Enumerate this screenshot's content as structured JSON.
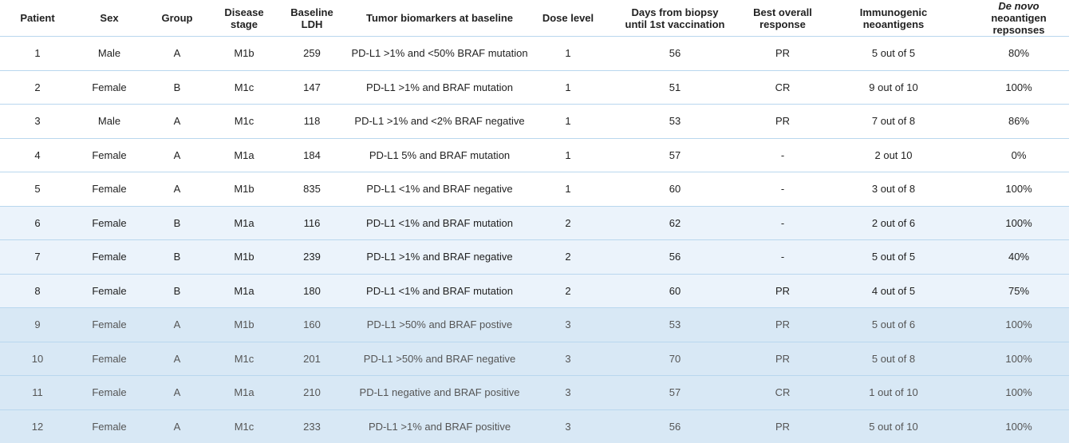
{
  "table": {
    "header": [
      [
        "Patient"
      ],
      [
        "Sex"
      ],
      [
        "Group"
      ],
      [
        "Disease",
        "stage"
      ],
      [
        "Baseline",
        "LDH"
      ],
      [
        "Tumor biomarkers at baseline"
      ],
      [
        "Dose level"
      ],
      [
        "Days from biopsy",
        "until 1st vaccination"
      ],
      [
        "Best overall",
        "response"
      ],
      [
        "Immunogenic",
        "neoantigens"
      ],
      [
        "De novo",
        "neoantigen repsonses"
      ]
    ],
    "rows": [
      [
        "1",
        "Male",
        "A",
        "M1b",
        "259",
        "PD-L1 >1% and <50% BRAF mutation",
        "1",
        "56",
        "PR",
        "5 out of 5",
        "80%"
      ],
      [
        "2",
        "Female",
        "B",
        "M1c",
        "147",
        "PD-L1 >1% and BRAF mutation",
        "1",
        "51",
        "CR",
        "9 out of 10",
        "100%"
      ],
      [
        "3",
        "Male",
        "A",
        "M1c",
        "118",
        "PD-L1 >1% and <2% BRAF negative",
        "1",
        "53",
        "PR",
        "7 out of 8",
        "86%"
      ],
      [
        "4",
        "Female",
        "A",
        "M1a",
        "184",
        "PD-L1 5% and BRAF mutation",
        "1",
        "57",
        "-",
        "2 out 10",
        "0%"
      ],
      [
        "5",
        "Female",
        "A",
        "M1b",
        "835",
        "PD-L1 <1% and BRAF negative",
        "1",
        "60",
        "-",
        "3 out of 8",
        "100%"
      ],
      [
        "6",
        "Female",
        "B",
        "M1a",
        "116",
        "PD-L1 <1% and  BRAF mutation",
        "2",
        "62",
        "-",
        "2 out of 6",
        "100%"
      ],
      [
        "7",
        "Female",
        "B",
        "M1b",
        "239",
        "PD-L1 >1% and BRAF negative",
        "2",
        "56",
        "-",
        "5 out of 5",
        "40%"
      ],
      [
        "8",
        "Female",
        "B",
        "M1a",
        "180",
        "PD-L1 <1% and BRAF mutation",
        "2",
        "60",
        "PR",
        "4 out of 5",
        "75%"
      ],
      [
        "9",
        "Female",
        "A",
        "M1b",
        "160",
        "PD-L1 >50% and BRAF postive",
        "3",
        "53",
        "PR",
        "5 out of 6",
        "100%"
      ],
      [
        "10",
        "Female",
        "A",
        "M1c",
        "201",
        "PD-L1 >50% and BRAF negative",
        "3",
        "70",
        "PR",
        "5 out of 8",
        "100%"
      ],
      [
        "11",
        "Female",
        "A",
        "M1a",
        "210",
        "PD-L1 negative and BRAF positive",
        "3",
        "57",
        "CR",
        "1 out of 10",
        "100%"
      ],
      [
        "12",
        "Female",
        "A",
        "M1c",
        "233",
        "PD-L1 >1% and BRAF positive",
        "3",
        "56",
        "PR",
        "5 out of 10",
        "100%"
      ]
    ]
  }
}
